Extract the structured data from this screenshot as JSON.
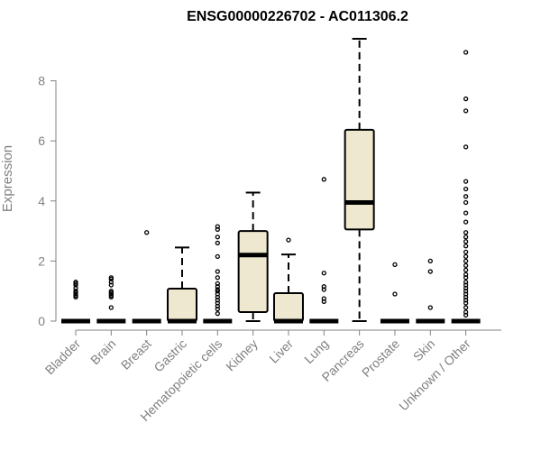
{
  "chart_data": {
    "type": "box",
    "title": "ENSG00000226702 - AC011306.2",
    "ylabel": "Expression",
    "xlabel": "",
    "ylim": [
      0,
      9.5
    ],
    "yticks": [
      0,
      2,
      4,
      6,
      8
    ],
    "grid": false,
    "colors": {
      "box_fill": "#EEE8D0",
      "stroke": "#000000",
      "axis": "#808080"
    },
    "categories": [
      "Bladder",
      "Brain",
      "Breast",
      "Gastric",
      "Hematopoietic cells",
      "Kidney",
      "Liver",
      "Lung",
      "Pancreas",
      "Prostate",
      "Skin",
      "Unknown / Other"
    ],
    "boxes": [
      {
        "min": 0,
        "q1": 0,
        "median": 0,
        "q3": 0,
        "max": 0,
        "outliers": [
          0.8,
          0.85,
          0.9,
          0.95,
          1.0,
          1.1,
          1.2,
          1.25,
          1.3
        ]
      },
      {
        "min": 0,
        "q1": 0,
        "median": 0,
        "q3": 0,
        "max": 0,
        "outliers": [
          0.45,
          0.8,
          0.85,
          0.9,
          0.95,
          1.0,
          1.2,
          1.3,
          1.4,
          1.45
        ]
      },
      {
        "min": 0,
        "q1": 0,
        "median": 0,
        "q3": 0,
        "max": 0,
        "outliers": [
          2.95
        ]
      },
      {
        "min": 0,
        "q1": 0,
        "median": 0,
        "q3": 1.08,
        "max": 2.45,
        "outliers": []
      },
      {
        "min": 0,
        "q1": 0,
        "median": 0,
        "q3": 0,
        "max": 0,
        "outliers": [
          0.25,
          0.4,
          0.5,
          0.6,
          0.7,
          0.8,
          0.9,
          1.0,
          1.05,
          1.15,
          1.25,
          1.45,
          1.65,
          2.15,
          2.6,
          2.8,
          3.05,
          3.15
        ]
      },
      {
        "min": 0,
        "q1": 0.3,
        "median": 2.2,
        "q3": 3.0,
        "max": 4.28,
        "outliers": []
      },
      {
        "min": 0,
        "q1": 0,
        "median": 0,
        "q3": 0.93,
        "max": 2.22,
        "outliers": [
          2.7
        ]
      },
      {
        "min": 0,
        "q1": 0,
        "median": 0,
        "q3": 0,
        "max": 0,
        "outliers": [
          0.65,
          0.75,
          1.05,
          1.15,
          1.6,
          4.72
        ]
      },
      {
        "min": 0,
        "q1": 3.05,
        "median": 3.95,
        "q3": 6.37,
        "max": 9.4,
        "outliers": []
      },
      {
        "min": 0,
        "q1": 0,
        "median": 0,
        "q3": 0,
        "max": 0,
        "outliers": [
          0.9,
          1.88
        ]
      },
      {
        "min": 0,
        "q1": 0,
        "median": 0,
        "q3": 0,
        "max": 0,
        "outliers": [
          0.45,
          1.65,
          2.0
        ]
      },
      {
        "min": 0,
        "q1": 0,
        "median": 0,
        "q3": 0,
        "max": 0,
        "outliers": [
          0.2,
          0.3,
          0.45,
          0.6,
          0.7,
          0.8,
          0.9,
          1.0,
          1.1,
          1.2,
          1.3,
          1.45,
          1.55,
          1.7,
          1.85,
          2.0,
          2.15,
          2.3,
          2.5,
          2.65,
          2.8,
          2.95,
          3.3,
          3.6,
          3.95,
          4.15,
          4.4,
          4.65,
          5.8,
          7.0,
          7.4,
          8.95
        ]
      }
    ]
  }
}
